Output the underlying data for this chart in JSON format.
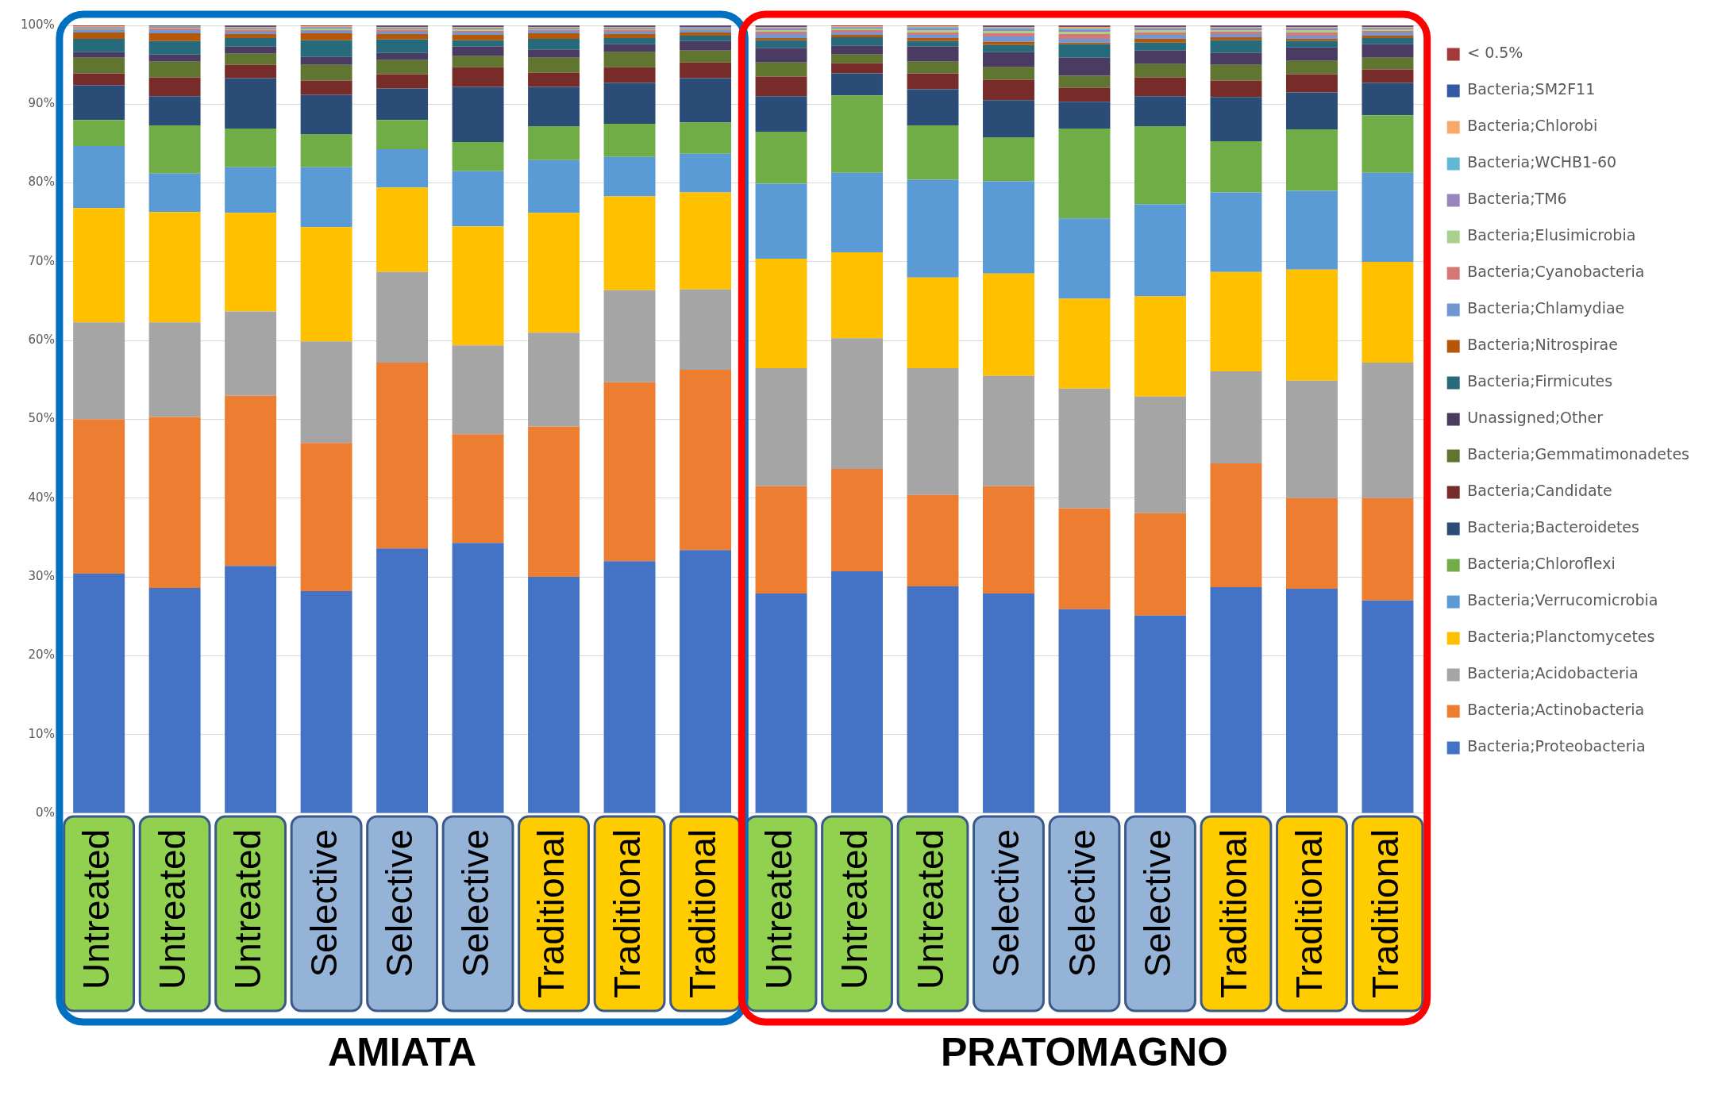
{
  "chart_data": {
    "type": "bar",
    "stacked": true,
    "grid": "y",
    "legend": "right",
    "categories": [
      "Untreated",
      "Untreated",
      "Untreated",
      "Selective",
      "Selective",
      "Selective",
      "Traditional",
      "Traditional",
      "Traditional",
      "Untreated",
      "Untreated",
      "Untreated",
      "Selective",
      "Selective",
      "Selective",
      "Traditional",
      "Traditional",
      "Traditional"
    ],
    "ylim": [
      0,
      100
    ],
    "yticks": [
      {
        "value": 0,
        "label": "0%"
      },
      {
        "value": 10,
        "label": "10%"
      },
      {
        "value": 20,
        "label": "20%"
      },
      {
        "value": 30,
        "label": "30%"
      },
      {
        "value": 40,
        "label": "40%"
      },
      {
        "value": 50,
        "label": "50%"
      },
      {
        "value": 60,
        "label": "60%"
      },
      {
        "value": 70,
        "label": "70%"
      },
      {
        "value": 80,
        "label": "80%"
      },
      {
        "value": 90,
        "label": "90%"
      },
      {
        "value": 100,
        "label": "100%"
      }
    ],
    "annotations": [
      "AMIATA",
      "PRATOMAGNO"
    ],
    "series": [
      {
        "name": "Bacteria;Proteobacteria",
        "color": "#4472c4",
        "values": [
          30.4,
          28.6,
          31.4,
          28.2,
          33.6,
          34.3,
          30.0,
          32.0,
          33.4,
          27.9,
          30.7,
          28.8,
          27.9,
          25.9,
          25.1,
          28.7,
          28.5,
          27.0
        ]
      },
      {
        "name": "Bacteria;Actinobacteria",
        "color": "#ed7d31",
        "values": [
          19.6,
          21.7,
          21.6,
          18.8,
          23.6,
          13.8,
          19.1,
          22.7,
          22.9,
          13.6,
          13.0,
          11.6,
          13.6,
          12.8,
          13.0,
          15.7,
          11.5,
          13.0
        ]
      },
      {
        "name": "Bacteria;Acidobacteria",
        "color": "#a5a5a5",
        "values": [
          12.3,
          12.0,
          10.7,
          12.9,
          11.5,
          11.3,
          11.9,
          11.7,
          10.2,
          15.0,
          16.6,
          16.1,
          14.0,
          15.2,
          14.8,
          11.7,
          14.9,
          17.2
        ]
      },
      {
        "name": "Bacteria;Planctomycetes",
        "color": "#ffc000",
        "values": [
          14.5,
          14.0,
          12.5,
          14.5,
          10.7,
          15.1,
          15.2,
          11.9,
          12.3,
          13.9,
          10.9,
          11.5,
          13.0,
          11.4,
          12.7,
          12.6,
          14.1,
          12.8
        ]
      },
      {
        "name": "Bacteria;Verrucomicrobia",
        "color": "#5b9bd5",
        "values": [
          7.9,
          4.9,
          5.8,
          7.6,
          4.9,
          7.0,
          6.7,
          5.0,
          4.9,
          9.5,
          10.1,
          12.4,
          11.7,
          10.2,
          11.7,
          10.1,
          10.0,
          11.3
        ]
      },
      {
        "name": "Bacteria;Chloroflexi",
        "color": "#70ad47",
        "values": [
          3.3,
          6.1,
          4.9,
          4.2,
          3.7,
          3.7,
          4.3,
          4.2,
          4.0,
          6.6,
          9.8,
          6.9,
          5.6,
          11.4,
          9.9,
          6.5,
          7.8,
          7.3
        ]
      },
      {
        "name": "Bacteria;Bacteroidetes",
        "color": "#2b4c77",
        "values": [
          4.4,
          3.7,
          6.4,
          5.0,
          4.0,
          7.0,
          5.0,
          5.2,
          5.6,
          4.5,
          2.8,
          4.6,
          4.7,
          3.4,
          3.8,
          5.6,
          4.7,
          4.1
        ]
      },
      {
        "name": "Bacteria;Candidate",
        "color": "#772c2a",
        "values": [
          1.5,
          2.4,
          1.7,
          1.8,
          1.8,
          2.5,
          1.8,
          2.0,
          2.0,
          2.5,
          1.3,
          2.0,
          2.6,
          1.8,
          2.4,
          2.1,
          2.3,
          1.7
        ]
      },
      {
        "name": "Bacteria;Gemmatimonadetes",
        "color": "#5f7530",
        "values": [
          2.0,
          2.0,
          1.4,
          2.0,
          1.8,
          1.4,
          1.9,
          1.9,
          1.5,
          1.8,
          1.1,
          1.5,
          1.6,
          1.5,
          1.7,
          2.0,
          1.7,
          1.5
        ]
      },
      {
        "name": "Unassigned;Other",
        "color": "#4a3b62",
        "values": [
          0.7,
          0.9,
          0.9,
          1.0,
          0.9,
          1.2,
          1.0,
          1.0,
          1.2,
          1.8,
          1.1,
          1.9,
          1.9,
          2.3,
          1.7,
          1.5,
          1.7,
          1.7
        ]
      },
      {
        "name": "Bacteria;Firmicutes",
        "color": "#276a7c",
        "values": [
          1.7,
          1.7,
          1.1,
          2.1,
          1.7,
          0.8,
          1.4,
          0.8,
          0.7,
          1.0,
          1.1,
          0.7,
          0.9,
          1.7,
          1.0,
          1.6,
          0.8,
          0.8
        ]
      },
      {
        "name": "Bacteria;Nitrospirae",
        "color": "#b65708",
        "values": [
          0.8,
          1.0,
          0.5,
          0.9,
          0.7,
          0.7,
          0.7,
          0.5,
          0.4,
          0.3,
          0.3,
          0.4,
          0.4,
          0.2,
          0.5,
          0.4,
          0.3,
          0.3
        ]
      },
      {
        "name": "Bacteria;Chlamydiae",
        "color": "#6f97d4",
        "values": [
          0.3,
          0.4,
          0.3,
          0.3,
          0.3,
          0.3,
          0.3,
          0.3,
          0.3,
          0.5,
          0.3,
          0.4,
          0.7,
          0.5,
          0.5,
          0.4,
          0.4,
          0.4
        ]
      },
      {
        "name": "Bacteria;Cyanobacteria",
        "color": "#d57775",
        "values": [
          0.1,
          0.2,
          0.2,
          0.1,
          0.2,
          0.2,
          0.1,
          0.2,
          0.1,
          0.3,
          0.3,
          0.3,
          0.4,
          0.6,
          0.3,
          0.3,
          0.4,
          0.2
        ]
      },
      {
        "name": "Bacteria;Elusimicrobia",
        "color": "#a9d08e",
        "values": [
          0.1,
          0.1,
          0.1,
          0.2,
          0.1,
          0.2,
          0.1,
          0.1,
          0.1,
          0.2,
          0.2,
          0.3,
          0.3,
          0.3,
          0.3,
          0.2,
          0.3,
          0.2
        ]
      },
      {
        "name": "Bacteria;TM6",
        "color": "#9a84be",
        "values": [
          0.1,
          0.1,
          0.1,
          0.1,
          0.1,
          0.1,
          0.1,
          0.1,
          0.1,
          0.2,
          0.1,
          0.2,
          0.2,
          0.2,
          0.2,
          0.2,
          0.2,
          0.1
        ]
      },
      {
        "name": "Bacteria;WCHB1-60",
        "color": "#62b9d6",
        "values": [
          0.1,
          0.1,
          0.1,
          0.1,
          0.1,
          0.1,
          0.1,
          0.1,
          0.1,
          0.1,
          0.1,
          0.2,
          0.2,
          0.2,
          0.1,
          0.1,
          0.1,
          0.1
        ]
      },
      {
        "name": "Bacteria;Chlorobi",
        "color": "#f8a96a",
        "values": [
          0.1,
          0.0,
          0.1,
          0.1,
          0.1,
          0.1,
          0.1,
          0.1,
          0.0,
          0.1,
          0.1,
          0.1,
          0.1,
          0.2,
          0.1,
          0.1,
          0.1,
          0.1
        ]
      },
      {
        "name": "Bacteria;SM2F11",
        "color": "#335aa0",
        "values": [
          0.0,
          0.0,
          0.1,
          0.0,
          0.1,
          0.1,
          0.1,
          0.1,
          0.1,
          0.1,
          0.0,
          0.0,
          0.1,
          0.1,
          0.1,
          0.1,
          0.1,
          0.1
        ]
      },
      {
        "name": "< 0.5%",
        "color": "#a33a3a",
        "values": [
          0.1,
          0.1,
          0.1,
          0.1,
          0.1,
          0.1,
          0.1,
          0.1,
          0.1,
          0.1,
          0.1,
          0.1,
          0.1,
          0.1,
          0.1,
          0.1,
          0.1,
          0.1
        ]
      }
    ]
  }
}
